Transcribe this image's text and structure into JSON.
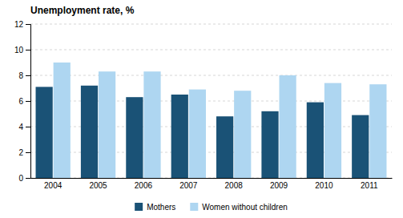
{
  "chart_data": {
    "type": "bar",
    "title": "Unemployment rate, %",
    "categories": [
      "2004",
      "2005",
      "2006",
      "2007",
      "2008",
      "2009",
      "2010",
      "2011"
    ],
    "series": [
      {
        "name": "Mothers",
        "color": "#1a5276",
        "values": [
          7.1,
          7.2,
          6.3,
          6.5,
          4.8,
          5.2,
          5.9,
          4.9
        ]
      },
      {
        "name": "Women without children",
        "color": "#aed6f1",
        "values": [
          9.0,
          8.3,
          8.3,
          6.9,
          6.8,
          8.0,
          7.4,
          7.3
        ]
      }
    ],
    "ylim": [
      0,
      12
    ],
    "yticks": [
      0,
      2,
      4,
      6,
      8,
      10,
      12
    ],
    "grid": true,
    "legend": "bottom"
  }
}
